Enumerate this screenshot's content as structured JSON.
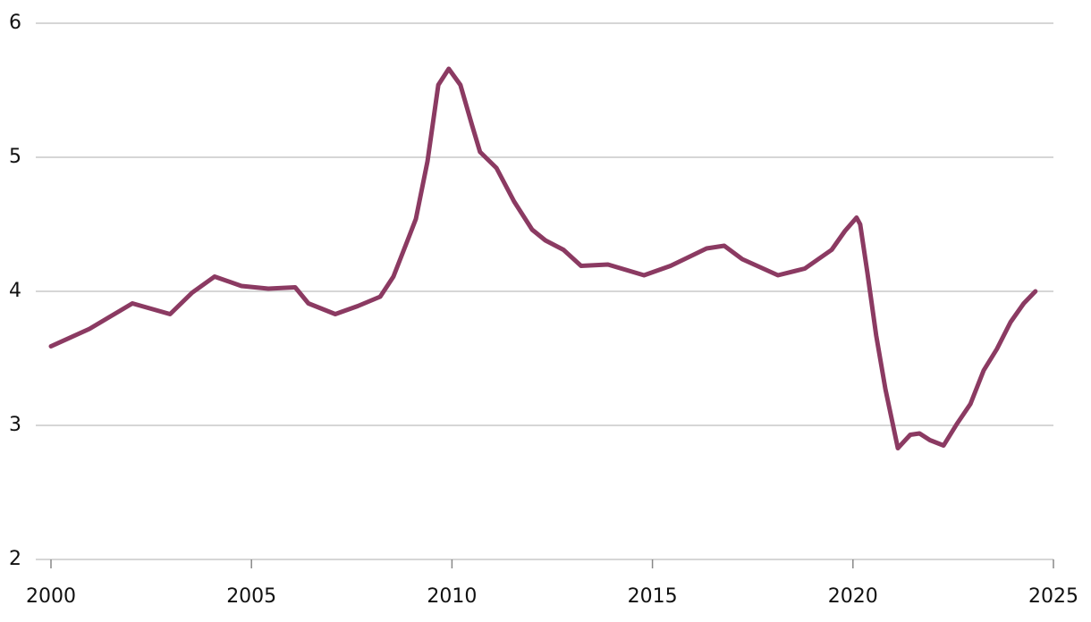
{
  "chart_data": {
    "type": "line",
    "x": [
      2000.0,
      2000.96,
      2002.03,
      2002.97,
      2003.52,
      2004.08,
      2004.75,
      2005.42,
      2006.09,
      2006.42,
      2007.09,
      2007.65,
      2008.21,
      2008.54,
      2008.88,
      2009.1,
      2009.39,
      2009.66,
      2009.92,
      2010.21,
      2010.5,
      2010.7,
      2011.11,
      2011.55,
      2012.0,
      2012.33,
      2012.78,
      2013.22,
      2013.89,
      2014.79,
      2015.45,
      2016.35,
      2016.79,
      2017.24,
      2018.13,
      2018.8,
      2019.47,
      2019.8,
      2020.09,
      2020.18,
      2020.36,
      2020.58,
      2020.81,
      2021.12,
      2021.43,
      2021.66,
      2021.92,
      2022.26,
      2022.59,
      2022.93,
      2023.26,
      2023.59,
      2023.93,
      2024.26,
      2024.55
    ],
    "values": [
      3.59,
      3.72,
      3.91,
      3.83,
      3.99,
      4.11,
      4.04,
      4.02,
      4.03,
      3.91,
      3.83,
      3.89,
      3.96,
      4.11,
      4.37,
      4.54,
      4.97,
      5.54,
      5.66,
      5.54,
      5.24,
      5.04,
      4.92,
      4.67,
      4.46,
      4.38,
      4.31,
      4.19,
      4.2,
      4.12,
      4.19,
      4.32,
      4.34,
      4.24,
      4.12,
      4.17,
      4.31,
      4.45,
      4.55,
      4.5,
      4.14,
      3.67,
      3.27,
      2.83,
      2.93,
      2.94,
      2.89,
      2.85,
      3.01,
      3.16,
      3.41,
      3.57,
      3.77,
      3.91,
      4.0
    ],
    "color": "#8b3a62",
    "xlim": [
      2000,
      2025
    ],
    "xticks": [
      2000,
      2005,
      2010,
      2015,
      2020,
      2025
    ],
    "ylim": [
      2,
      6
    ],
    "yticks": [
      2,
      3,
      4,
      5,
      6
    ],
    "grid": true
  }
}
